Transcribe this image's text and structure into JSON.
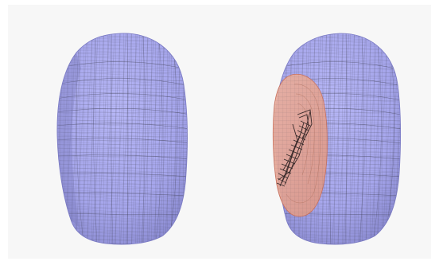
{
  "panels": [
    {
      "id": "left",
      "object": "head-mesh",
      "has_overlay": false
    },
    {
      "id": "right",
      "object": "head-mesh-with-ear-region",
      "has_overlay": true
    }
  ],
  "colors": {
    "background": "#ffffff",
    "frame": "#f7f7f7",
    "mesh_fill": "#a8a8ee",
    "mesh_shade": "#8f8fd8",
    "mesh_lines": "#4b4b5e",
    "overlay_fill": "#e8a08e",
    "overlay_stroke": "#c8705e",
    "ear_lines": "#3a2a2a"
  },
  "icons": {
    "left_head": "head-mesh-icon",
    "right_head": "head-mesh-icon",
    "ear_overlay": "ear-region-overlay"
  }
}
